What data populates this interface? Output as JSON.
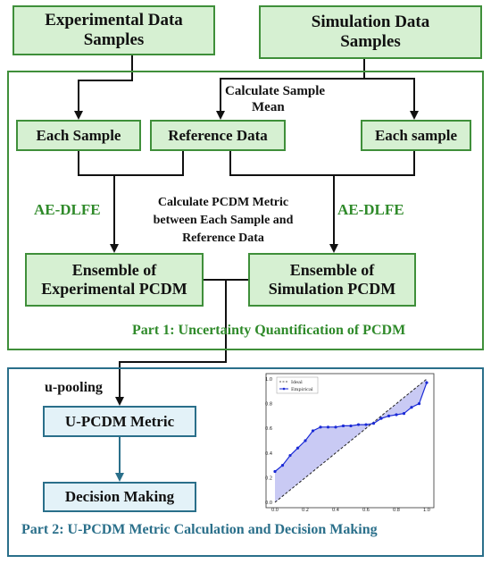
{
  "boxes": {
    "experimental": "Experimental Data Samples",
    "simulation": "Simulation Data Samples",
    "each_sample_left": "Each Sample",
    "reference": "Reference Data",
    "each_sample_right": "Each sample",
    "ens_exp": "Ensemble of Experimental PCDM",
    "ens_sim": "Ensemble of Simulation PCDM",
    "upcdm": "U-PCDM Metric",
    "decision": "Decision Making"
  },
  "labels": {
    "calc_mean_1": "Calculate Sample",
    "calc_mean_2": "Mean",
    "aedlfe_left": "AE-DLFE",
    "aedlfe_right": "AE-DLFE",
    "pcdm_1": "Calculate PCDM Metric",
    "pcdm_2": "between Each Sample and",
    "pcdm_3": "Reference Data",
    "part1": "Part 1:  Uncertainty Quantification of PCDM",
    "upooling": "u-pooling",
    "part2": "Part 2:   U-PCDM Metric Calculation and Decision Making"
  },
  "colors": {
    "green_border": "#3f8f3a",
    "green_fill": "#d6f0d2",
    "green_text": "#2f8a2a",
    "blue_border": "#2a6f8a",
    "blue_fill": "#e3f2f8",
    "blue_text": "#2a6f8a"
  },
  "chart_data": {
    "type": "line",
    "legend": [
      "Ideal",
      "Empirical"
    ],
    "legend_position": "top-left",
    "xlim": [
      0,
      1
    ],
    "ylim": [
      0,
      1
    ],
    "xticks": [
      "0.0",
      "0.2",
      "0.4",
      "0.6",
      "0.8",
      "1.0"
    ],
    "yticks": [
      "0.0",
      "0.2",
      "0.4",
      "0.6",
      "0.8",
      "1.0"
    ],
    "ideal": {
      "x": [
        0,
        1
      ],
      "y": [
        0,
        1
      ]
    },
    "empirical": {
      "x": [
        0.0,
        0.05,
        0.1,
        0.15,
        0.2,
        0.25,
        0.3,
        0.35,
        0.4,
        0.45,
        0.5,
        0.55,
        0.6,
        0.65,
        0.7,
        0.75,
        0.8,
        0.85,
        0.9,
        0.95,
        1.0
      ],
      "y": [
        0.25,
        0.3,
        0.38,
        0.44,
        0.5,
        0.58,
        0.61,
        0.61,
        0.61,
        0.62,
        0.62,
        0.63,
        0.63,
        0.64,
        0.68,
        0.7,
        0.71,
        0.72,
        0.77,
        0.8,
        0.97
      ]
    },
    "colors": {
      "ideal": "#222222",
      "empirical": "#1a2ad6",
      "fill": "#b7b8f0"
    }
  }
}
